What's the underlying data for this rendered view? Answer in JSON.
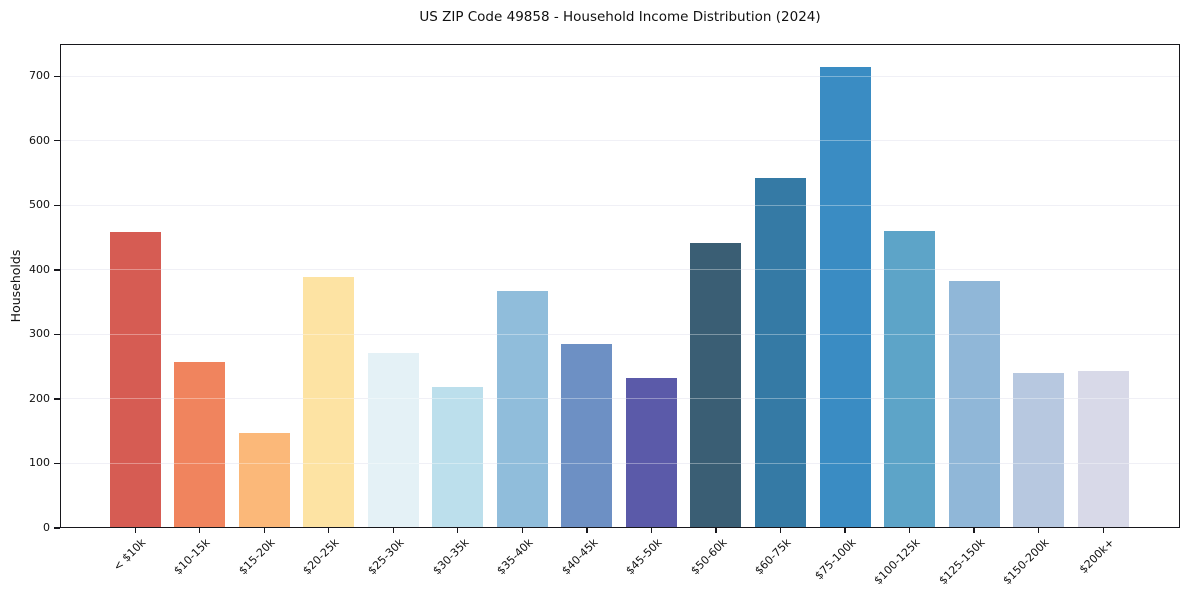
{
  "chart_data": {
    "type": "bar",
    "title": "US ZIP Code 49858 - Household Income Distribution (2024)",
    "xlabel": "",
    "ylabel": "Households",
    "categories": [
      "< $10k",
      "$10-15k",
      "$15-20k",
      "$20-25k",
      "$25-30k",
      "$30-35k",
      "$35-40k",
      "$40-45k",
      "$45-50k",
      "$50-60k",
      "$60-75k",
      "$75-100k",
      "$100-125k",
      "$125-150k",
      "$150-200k",
      "$200k+"
    ],
    "values": [
      458,
      257,
      148,
      389,
      271,
      218,
      367,
      285,
      232,
      442,
      543,
      714,
      461,
      383,
      240,
      243
    ],
    "bar_colors": [
      "#d65c53",
      "#f0845e",
      "#fbb879",
      "#fde3a3",
      "#e4f1f6",
      "#bcdfec",
      "#90bddb",
      "#6d90c4",
      "#5b5aa9",
      "#3a5e74",
      "#357aa5",
      "#3a8cc3",
      "#5da4c8",
      "#90b7d8",
      "#b7c8e0",
      "#d8d9e8"
    ],
    "ylim": [
      0,
      750
    ],
    "yticks": [
      0,
      100,
      200,
      300,
      400,
      500,
      600,
      700
    ],
    "grid": "horizontal",
    "legend": "none",
    "background_color": "#ffffff",
    "grid_color": "#e9e9f1",
    "axis_color": "#17171c"
  }
}
